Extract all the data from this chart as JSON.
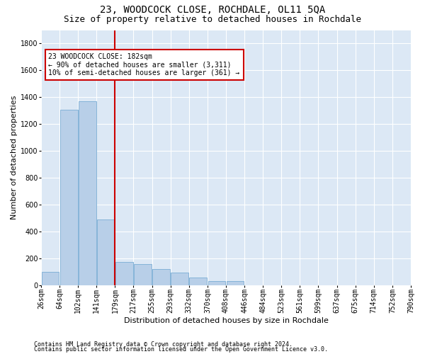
{
  "title": "23, WOODCOCK CLOSE, ROCHDALE, OL11 5QA",
  "subtitle": "Size of property relative to detached houses in Rochdale",
  "xlabel": "Distribution of detached houses by size in Rochdale",
  "ylabel": "Number of detached properties",
  "footer1": "Contains HM Land Registry data © Crown copyright and database right 2024.",
  "footer2": "Contains public sector information licensed under the Open Government Licence v3.0.",
  "property_label": "23 WOODCOCK CLOSE: 182sqm",
  "annotation_line1": "← 90% of detached houses are smaller (3,311)",
  "annotation_line2": "10% of semi-detached houses are larger (361) →",
  "bin_labels": [
    "26sqm",
    "64sqm",
    "102sqm",
    "141sqm",
    "179sqm",
    "217sqm",
    "255sqm",
    "293sqm",
    "332sqm",
    "370sqm",
    "408sqm",
    "446sqm",
    "484sqm",
    "523sqm",
    "561sqm",
    "599sqm",
    "637sqm",
    "675sqm",
    "714sqm",
    "752sqm",
    "790sqm"
  ],
  "bin_counts": [
    100,
    1305,
    1370,
    490,
    170,
    155,
    120,
    90,
    55,
    30,
    30,
    0,
    0,
    0,
    0,
    0,
    0,
    0,
    0,
    0
  ],
  "n_bars": 20,
  "vline_bar_index": 4,
  "bar_color": "#b8cfe8",
  "bar_edge_color": "#7aadd4",
  "vline_color": "#cc0000",
  "annotation_box_color": "#cc0000",
  "ylim": [
    0,
    1900
  ],
  "yticks": [
    0,
    200,
    400,
    600,
    800,
    1000,
    1200,
    1400,
    1600,
    1800
  ],
  "bg_color": "#dce8f5",
  "grid_color": "#ffffff",
  "title_fontsize": 10,
  "subtitle_fontsize": 9,
  "ylabel_fontsize": 8,
  "xlabel_fontsize": 8,
  "tick_fontsize": 7,
  "annotation_fontsize": 7,
  "footer_fontsize": 6
}
